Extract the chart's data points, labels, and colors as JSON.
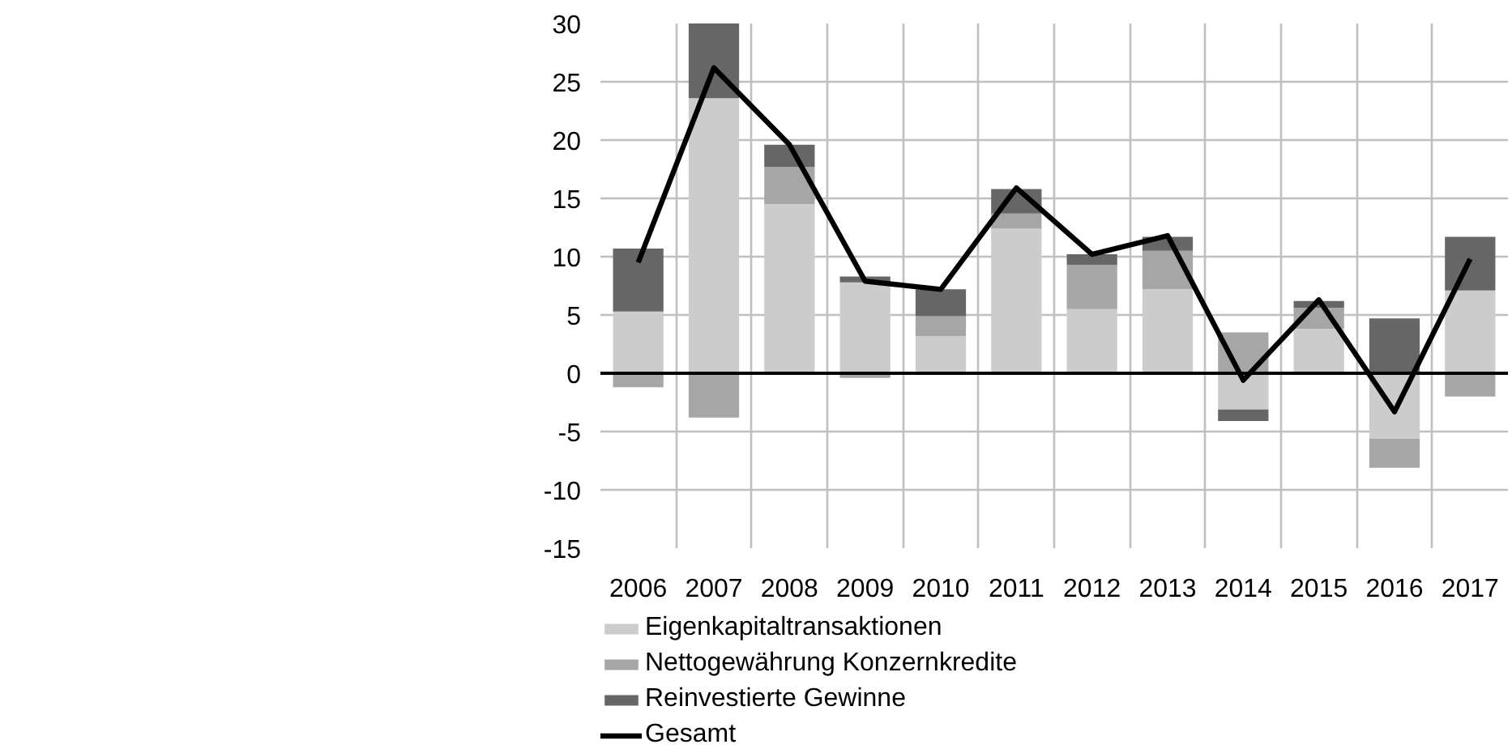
{
  "chart_data": {
    "type": "bar",
    "stacked": true,
    "categories": [
      "2006",
      "2007",
      "2008",
      "2009",
      "2010",
      "2011",
      "2012",
      "2013",
      "2014",
      "2015",
      "2016",
      "2017"
    ],
    "series": [
      {
        "name": "Eigenkapitaltransaktionen",
        "color": "#cccccc",
        "values": [
          5.3,
          23.6,
          14.5,
          7.8,
          3.2,
          12.4,
          5.5,
          7.2,
          -3.1,
          3.8,
          -5.6,
          7.1
        ]
      },
      {
        "name": "Nettogewährung Konzernkredite",
        "color": "#a6a6a6",
        "values": [
          -1.2,
          -3.8,
          3.2,
          -0.4,
          1.7,
          1.3,
          3.8,
          3.3,
          3.5,
          1.8,
          -2.5,
          -2.0
        ]
      },
      {
        "name": "Reinvestierte Gewinne",
        "color": "#666666",
        "values": [
          5.4,
          6.4,
          1.9,
          0.5,
          2.3,
          2.1,
          0.9,
          1.2,
          -1.0,
          0.6,
          4.7,
          4.6
        ]
      },
      {
        "name": "Gesamt",
        "type": "line",
        "color": "#000000",
        "values": [
          9.5,
          26.2,
          19.6,
          7.9,
          7.2,
          15.9,
          10.2,
          11.8,
          -0.6,
          6.3,
          -3.3,
          9.8
        ]
      }
    ],
    "ylim": [
      -15,
      30
    ],
    "yticks": [
      -15,
      -10,
      -5,
      0,
      5,
      10,
      15,
      20,
      25,
      30
    ],
    "grid": true,
    "legend": "bottom",
    "ref_lines": [
      {
        "axis": "y",
        "value": 0,
        "color": "#000000"
      }
    ]
  }
}
